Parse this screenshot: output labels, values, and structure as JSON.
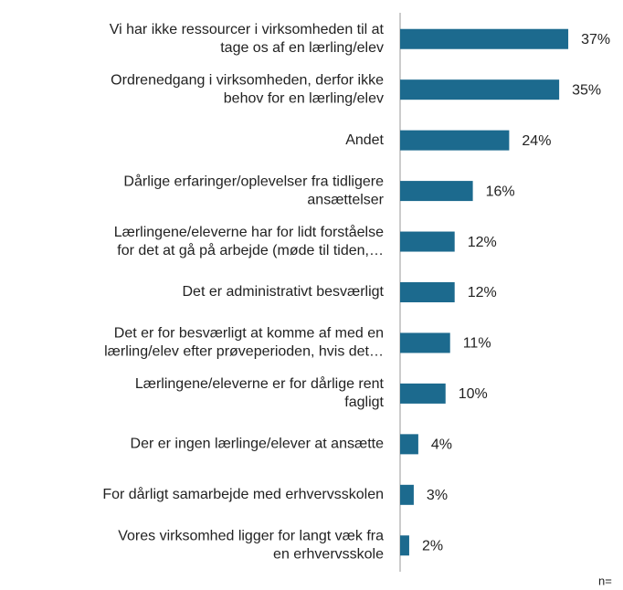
{
  "chart_data": {
    "type": "bar",
    "orientation": "horizontal",
    "categories": [
      [
        "Vi har ikke ressourcer i virksomheden til at",
        "tage os af en lærling/elev"
      ],
      [
        "Ordrenedgang i virksomheden, derfor ikke",
        "behov for en lærling/elev"
      ],
      [
        "Andet"
      ],
      [
        "Dårlige erfaringer/oplevelser fra tidligere",
        "ansættelser"
      ],
      [
        "Lærlingene/eleverne har for lidt forståelse",
        "for det at gå på arbejde (møde til tiden,…"
      ],
      [
        "Det er administrativt besværligt"
      ],
      [
        "Det er for besværligt at komme af med en",
        "lærling/elev efter prøveperioden, hvis det…"
      ],
      [
        "Lærlingene/eleverne er for dårlige rent",
        "fagligt"
      ],
      [
        "Der er ingen lærlinge/elever at ansætte"
      ],
      [
        "For dårligt samarbejde med erhvervsskolen"
      ],
      [
        "Vores virksomhed ligger for langt væk fra",
        "en erhvervsskole"
      ]
    ],
    "values": [
      37,
      35,
      24,
      16,
      12,
      12,
      11,
      10,
      4,
      3,
      2
    ],
    "value_labels": [
      "37%",
      "35%",
      "24%",
      "16%",
      "12%",
      "12%",
      "11%",
      "10%",
      "4%",
      "3%",
      "2%"
    ],
    "color": "#1c6a8e",
    "xlim": [
      0,
      40
    ],
    "annotation": "n="
  }
}
